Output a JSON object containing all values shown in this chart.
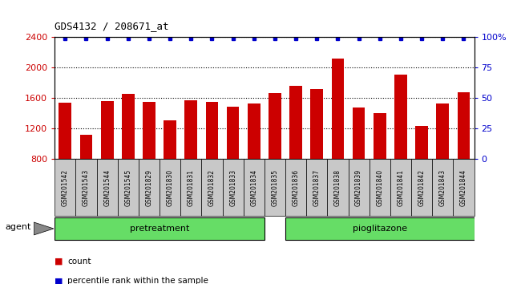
{
  "title": "GDS4132 / 208671_at",
  "categories": [
    "GSM201542",
    "GSM201543",
    "GSM201544",
    "GSM201545",
    "GSM201829",
    "GSM201830",
    "GSM201831",
    "GSM201832",
    "GSM201833",
    "GSM201834",
    "GSM201835",
    "GSM201836",
    "GSM201837",
    "GSM201838",
    "GSM201839",
    "GSM201840",
    "GSM201841",
    "GSM201842",
    "GSM201843",
    "GSM201844"
  ],
  "bar_values": [
    1540,
    1120,
    1560,
    1650,
    1550,
    1310,
    1570,
    1550,
    1490,
    1530,
    1660,
    1760,
    1720,
    2120,
    1480,
    1400,
    1910,
    1230,
    1530,
    1680
  ],
  "bar_color": "#cc0000",
  "percentile_color": "#0000cc",
  "ylim_left": [
    800,
    2400
  ],
  "ylim_right": [
    0,
    100
  ],
  "yticks_left": [
    800,
    1200,
    1600,
    2000,
    2400
  ],
  "yticks_right": [
    0,
    25,
    50,
    75,
    100
  ],
  "pretreatment_count": 10,
  "pioglitazone_count": 10,
  "pretreatment_label": "pretreatment",
  "pioglitazone_label": "pioglitazone",
  "agent_label": "agent",
  "legend_count": "count",
  "legend_percentile": "percentile rank within the sample",
  "bar_width": 0.6,
  "plot_bg_color": "#ffffff",
  "tickbox_bg_color": "#c8c8c8",
  "green_color": "#90ee90",
  "green_dark_color": "#66dd66"
}
